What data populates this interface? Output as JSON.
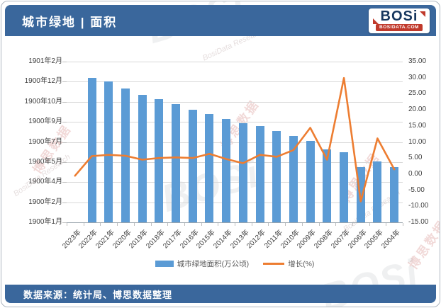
{
  "header": {
    "title": "城市绿地 | 面积",
    "logo": {
      "name": "BOSi",
      "domain": "BOSIDATA.COM"
    }
  },
  "footer": {
    "source": "数据来源：统计局、博思数据整理"
  },
  "watermark": {
    "cn": "博思数据",
    "en": "BosiData Research",
    "logo": "BOSi"
  },
  "chart_data": {
    "type": "bar+line combo",
    "title": "城市绿地 | 面积",
    "categories": [
      "2023年",
      "2022年",
      "2021年",
      "2020年",
      "2019年",
      "2018年",
      "2017年",
      "2016年",
      "2015年",
      "2014年",
      "2013年",
      "2012年",
      "2011年",
      "2010年",
      "2009年",
      "2008年",
      "2007年",
      "2006年",
      "2005年",
      "2004年"
    ],
    "series": [
      {
        "name": "城市绿地面积(万公顷)",
        "type": "bar",
        "axis": "left",
        "color": "#5b9bd5",
        "values": [
          null,
          359,
          350,
          333,
          318,
          307,
          294,
          281,
          269,
          258,
          247,
          240,
          227,
          215,
          202,
          181,
          175,
          137,
          151,
          138
        ]
      },
      {
        "name": "增长(%)",
        "type": "line",
        "axis": "right",
        "color": "#ed7d31",
        "values": [
          -0.5,
          5.6,
          6.0,
          5.7,
          4.5,
          5.0,
          5.2,
          5.0,
          6.3,
          4.7,
          3.4,
          6.0,
          5.4,
          7.5,
          14.4,
          4.5,
          29.9,
          -8.5,
          11.1,
          1.5
        ]
      }
    ],
    "left_axis": {
      "min": 0,
      "max": 400,
      "step": 50,
      "note": "numeric axis mis-formatted as Excel dates",
      "labels_top_to_bottom": [
        "1901年2月",
        "1900年12月",
        "1900年10月",
        "1900年9月",
        "1900年7月",
        "1900年5月",
        "1900年4月",
        "1900年2月",
        "1900年1月"
      ]
    },
    "right_axis": {
      "min": -15,
      "max": 35,
      "step": 5,
      "labels_top_to_bottom": [
        "35.00",
        "30.00",
        "25.00",
        "20.00",
        "15.00",
        "10.00",
        "5.00",
        "0.00",
        "-5.00",
        "-10.00",
        "-15.00"
      ]
    },
    "legend": [
      "城市绿地面积(万公顷)",
      "增长(%)"
    ],
    "grid": "horizontal gridlines on, aligned to left axis"
  }
}
